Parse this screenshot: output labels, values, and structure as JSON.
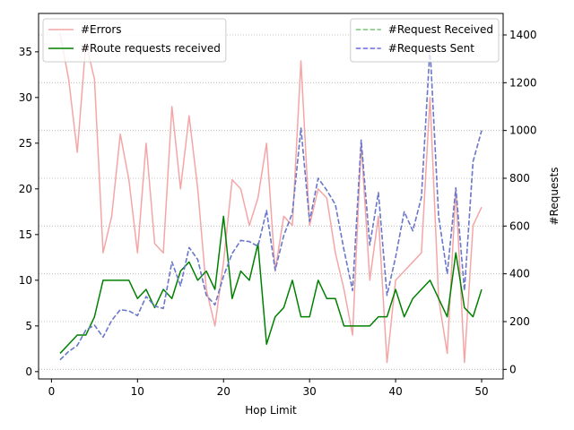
{
  "chart_data": {
    "type": "line",
    "xlabel": "Hop Limit",
    "ylabel_right": "#Requests",
    "xlim": [
      -1.5,
      52.5
    ],
    "ylim_left": [
      -0.8,
      39.2
    ],
    "ylim_right": [
      -40,
      1490
    ],
    "x_ticks": [
      0,
      10,
      20,
      30,
      40,
      50
    ],
    "y_left_ticks": [
      0,
      5,
      10,
      15,
      20,
      25,
      30,
      35
    ],
    "y_right_ticks": [
      0,
      200,
      400,
      600,
      800,
      1000,
      1200,
      1400
    ],
    "grid_right": true,
    "legend_left": {
      "position": "upper-left",
      "entries": [
        "#Errors",
        "#Route requests received"
      ]
    },
    "legend_right": {
      "position": "upper-right",
      "entries": [
        "#Request Received",
        "#Requests Sent"
      ]
    },
    "x": [
      1,
      2,
      3,
      4,
      5,
      6,
      7,
      8,
      9,
      10,
      11,
      12,
      13,
      14,
      15,
      16,
      17,
      18,
      19,
      20,
      21,
      22,
      23,
      24,
      25,
      26,
      27,
      28,
      29,
      30,
      31,
      32,
      33,
      34,
      35,
      36,
      37,
      38,
      39,
      40,
      41,
      42,
      43,
      44,
      45,
      46,
      47,
      48,
      49,
      50
    ],
    "series": [
      {
        "name": "#Errors",
        "axis": "left",
        "color": "#f4a6a6",
        "dash": "solid",
        "values": [
          37,
          32,
          24,
          36,
          32,
          13,
          17,
          26,
          21,
          13,
          25,
          14,
          13,
          29,
          20,
          28,
          20,
          9,
          5,
          12,
          21,
          20,
          16,
          19,
          25,
          11,
          17,
          16,
          34,
          16,
          20,
          19,
          13,
          9,
          4,
          25,
          10,
          17,
          1,
          10,
          11,
          12,
          13,
          30,
          8,
          2,
          20,
          1,
          16,
          18
        ]
      },
      {
        "name": "#Route requests received",
        "axis": "left",
        "color": "#008000",
        "dash": "solid",
        "values": [
          2,
          3,
          4,
          4,
          6,
          10,
          10,
          10,
          10,
          8,
          9,
          7,
          9,
          8,
          11,
          12,
          10,
          11,
          9,
          17,
          8,
          11,
          10,
          14,
          3,
          6,
          7,
          10,
          6,
          6,
          10,
          8,
          8,
          5,
          5,
          5,
          5,
          6,
          6,
          9,
          6,
          8,
          9,
          10,
          8,
          6,
          13,
          7,
          6,
          9
        ]
      },
      {
        "name": "#Request Received",
        "axis": "right",
        "color": "#7ac27a",
        "dash": "dashed",
        "values": [
          40,
          75,
          100,
          165,
          185,
          135,
          205,
          250,
          245,
          225,
          305,
          265,
          255,
          450,
          350,
          510,
          460,
          310,
          270,
          390,
          485,
          540,
          535,
          515,
          665,
          415,
          560,
          655,
          1010,
          620,
          800,
          750,
          690,
          500,
          330,
          960,
          520,
          740,
          310,
          470,
          660,
          580,
          720,
          1350,
          640,
          400,
          760,
          330,
          870,
          1000
        ]
      },
      {
        "name": "#Requests Sent",
        "axis": "right",
        "color": "#6b6be0",
        "dash": "dashed",
        "values": [
          40,
          75,
          100,
          165,
          185,
          135,
          205,
          250,
          245,
          225,
          305,
          265,
          255,
          450,
          350,
          510,
          460,
          310,
          270,
          390,
          485,
          540,
          535,
          515,
          665,
          415,
          560,
          655,
          1010,
          620,
          800,
          750,
          690,
          500,
          330,
          960,
          520,
          740,
          310,
          470,
          660,
          580,
          720,
          1350,
          640,
          400,
          760,
          330,
          870,
          1000
        ]
      }
    ]
  }
}
